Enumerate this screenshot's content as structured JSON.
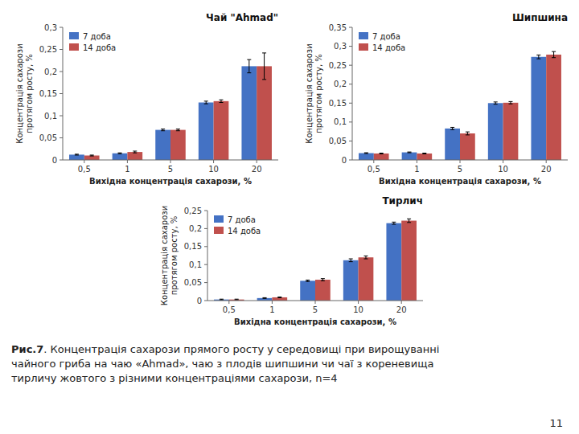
{
  "chart_data": [
    {
      "type": "bar",
      "title": "Чай \"Ahmad\"",
      "categories": [
        "0,5",
        "1",
        "5",
        "10",
        "20"
      ],
      "series": [
        {
          "name": "7 доба",
          "color": "#4472C4",
          "values": [
            0.012,
            0.015,
            0.068,
            0.13,
            0.212
          ],
          "errors": [
            0.001,
            0.001,
            0.002,
            0.003,
            0.015
          ]
        },
        {
          "name": "14 доба",
          "color": "#C0504D",
          "values": [
            0.01,
            0.018,
            0.068,
            0.133,
            0.212
          ],
          "errors": [
            0.001,
            0.002,
            0.002,
            0.003,
            0.03
          ]
        }
      ],
      "xlabel": "Вихідна концентрація сахарози, %",
      "ylabel": "Концентрація сахарози\nпротягом росту, %",
      "ylim": [
        0,
        0.3
      ],
      "yticks": [
        0,
        {
          "value": 0.05,
          "label": "0,05"
        },
        {
          "value": 0.1,
          "label": "0,1"
        },
        {
          "value": 0.15,
          "label": "0,15"
        },
        {
          "value": 0.2,
          "label": "0,2"
        },
        {
          "value": 0.25,
          "label": "0,25"
        },
        {
          "value": 0.3,
          "label": "0,3"
        }
      ],
      "legend": "upper left",
      "grid": false
    },
    {
      "type": "bar",
      "title": "Шипшина",
      "categories": [
        "0,5",
        "1",
        "5",
        "10",
        "20"
      ],
      "series": [
        {
          "name": "7 доба",
          "color": "#4472C4",
          "values": [
            0.018,
            0.02,
            0.083,
            0.15,
            0.272
          ],
          "errors": [
            0.001,
            0.001,
            0.003,
            0.003,
            0.005
          ]
        },
        {
          "name": "14 доба",
          "color": "#C0504D",
          "values": [
            0.017,
            0.017,
            0.07,
            0.151,
            0.278
          ],
          "errors": [
            0.001,
            0.001,
            0.004,
            0.003,
            0.008
          ]
        }
      ],
      "xlabel": "Вихідна концентрація сахарози, %",
      "ylabel": "Концентрація сахарози\nпротягом росту, %",
      "ylim": [
        0,
        0.35
      ],
      "yticks": [
        0,
        {
          "value": 0.05,
          "label": "0,05"
        },
        {
          "value": 0.1,
          "label": "0,1"
        },
        {
          "value": 0.15,
          "label": "0,15"
        },
        {
          "value": 0.2,
          "label": "0,2"
        },
        {
          "value": 0.25,
          "label": "0,25"
        },
        {
          "value": 0.3,
          "label": "0,3"
        },
        {
          "value": 0.35,
          "label": "0,35"
        }
      ],
      "legend": "upper left",
      "grid": false
    },
    {
      "type": "bar",
      "title": "Тирлич",
      "categories": [
        "0,5",
        "1",
        "5",
        "10",
        "20"
      ],
      "series": [
        {
          "name": "7 доба",
          "color": "#4472C4",
          "values": [
            0.003,
            0.007,
            0.055,
            0.112,
            0.215
          ],
          "errors": [
            0.001,
            0.001,
            0.002,
            0.004,
            0.003
          ]
        },
        {
          "name": "14 доба",
          "color": "#C0504D",
          "values": [
            0.003,
            0.009,
            0.058,
            0.12,
            0.222
          ],
          "errors": [
            0.001,
            0.001,
            0.003,
            0.004,
            0.005
          ]
        }
      ],
      "xlabel": "Вихідна концентрація сахарози, %",
      "ylabel": "Концентрація сахарози\nпротягом росту, %",
      "ylim": [
        0,
        0.25
      ],
      "yticks": [
        0,
        {
          "value": 0.05,
          "label": "0,05"
        },
        {
          "value": 0.1,
          "label": "0,1"
        },
        {
          "value": 0.15,
          "label": "0,15"
        },
        {
          "value": 0.2,
          "label": "0,2"
        },
        {
          "value": 0.25,
          "label": "0,25"
        }
      ],
      "legend": "upper left",
      "grid": false
    }
  ],
  "caption_label": "Рис.7",
  "caption": ". Концентрація сахарози прямого росту у середовищі при вирощуванні\nчайного гриба на чаю «Ahmad», чаю з плодів шипшини чи чаї з кореневища\nтирличу жовтого з різними концентраціями сахарози, n=4",
  "page_number": "11"
}
